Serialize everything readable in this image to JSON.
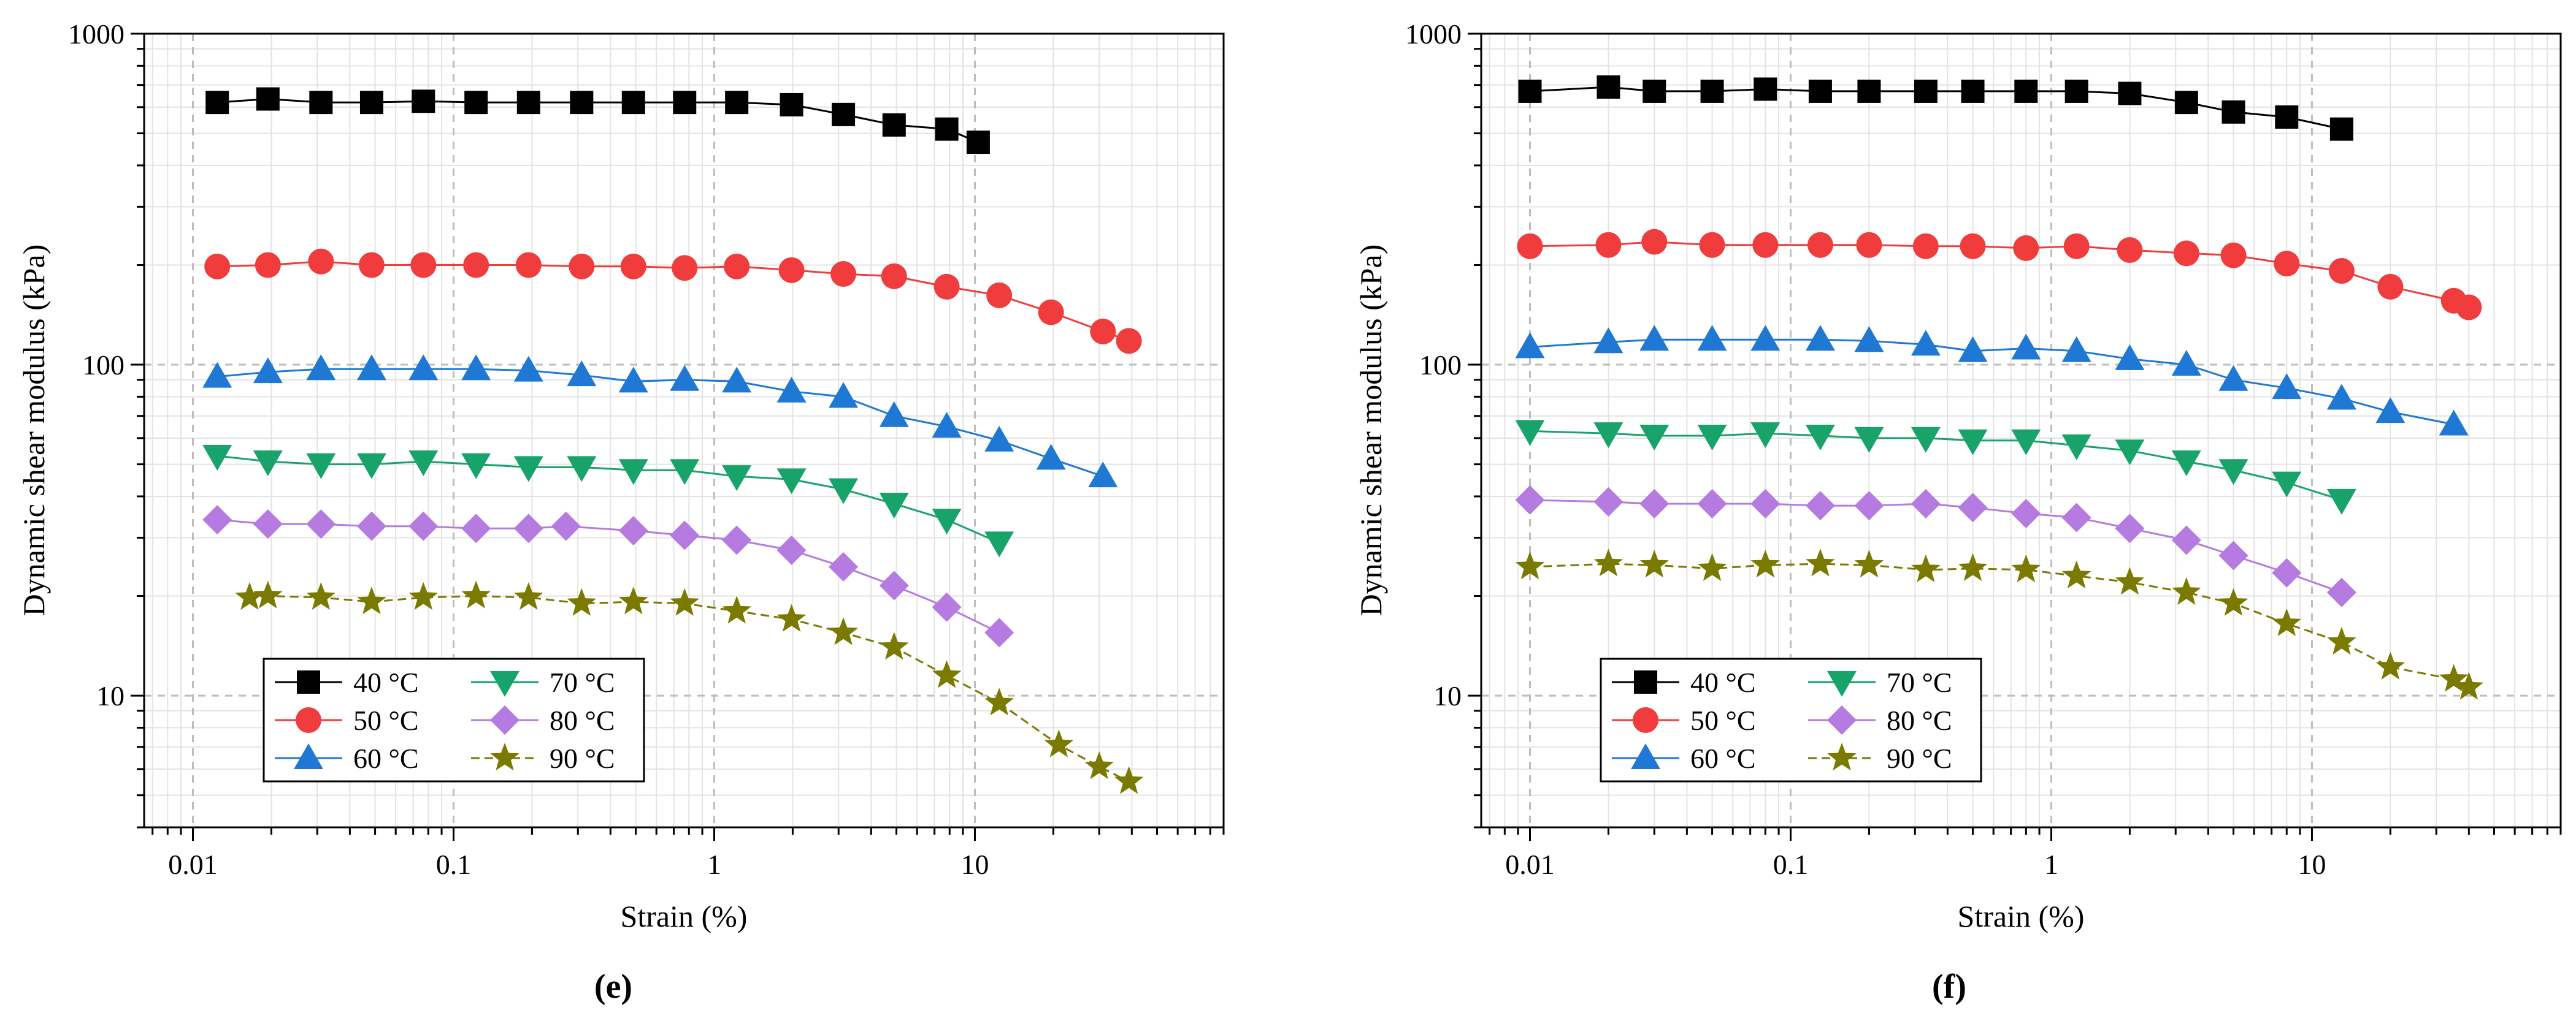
{
  "colors": {
    "40": "#000000",
    "50": "#f03c3c",
    "60": "#1f78d4",
    "70": "#17a36a",
    "80": "#b57be0",
    "90": "#7a7a00"
  },
  "chart_data": [
    {
      "type": "line",
      "panel_label": "(e)",
      "xlabel": "Strain (%)",
      "ylabel": "Dynamic shear modulus (kPa)",
      "xscale": "log",
      "yscale": "log",
      "xlim": [
        0.0065,
        90
      ],
      "ylim": [
        4,
        1000
      ],
      "xticks": [
        0.01,
        0.1,
        1,
        10
      ],
      "xtick_labels": [
        "0.01",
        "0.1",
        "1",
        "10"
      ],
      "yticks": [
        10,
        100,
        1000
      ],
      "ytick_labels": [
        "10",
        "100",
        "1000"
      ],
      "grid": true,
      "legend_position": "bottom-left",
      "series": [
        {
          "name": "40 °C",
          "color_key": "40",
          "marker": "square",
          "dash": false,
          "x": [
            0.0124,
            0.0194,
            0.031,
            0.0485,
            0.0766,
            0.122,
            0.194,
            0.31,
            0.49,
            0.77,
            1.22,
            1.98,
            3.13,
            4.9,
            7.8,
            10.3
          ],
          "y": [
            620,
            635,
            620,
            620,
            625,
            620,
            620,
            620,
            620,
            620,
            620,
            610,
            570,
            530,
            515,
            470
          ]
        },
        {
          "name": "50 °C",
          "color_key": "50",
          "marker": "circle",
          "dash": false,
          "x": [
            0.0124,
            0.0194,
            0.031,
            0.0485,
            0.0766,
            0.122,
            0.194,
            0.31,
            0.49,
            0.77,
            1.22,
            1.98,
            3.13,
            4.9,
            7.8,
            12.4,
            19.6,
            31,
            39
          ],
          "y": [
            198,
            200,
            205,
            200,
            200,
            200,
            200,
            198,
            198,
            196,
            198,
            193,
            188,
            185,
            172,
            162,
            144,
            126,
            118
          ]
        },
        {
          "name": "60 °C",
          "color_key": "60",
          "marker": "triangle-up",
          "dash": false,
          "x": [
            0.0124,
            0.0194,
            0.031,
            0.0485,
            0.0766,
            0.122,
            0.194,
            0.31,
            0.49,
            0.77,
            1.22,
            1.98,
            3.13,
            4.9,
            7.8,
            12.4,
            19.6,
            31
          ],
          "y": [
            92,
            95,
            97,
            97,
            97,
            97,
            96,
            93,
            89,
            90,
            89,
            83,
            80,
            70,
            65,
            59,
            52,
            46
          ]
        },
        {
          "name": "70 °C",
          "color_key": "70",
          "marker": "triangle-down",
          "dash": false,
          "x": [
            0.0124,
            0.0194,
            0.031,
            0.0485,
            0.0766,
            0.122,
            0.194,
            0.31,
            0.49,
            0.77,
            1.22,
            1.98,
            3.13,
            4.9,
            7.8,
            12.4
          ],
          "y": [
            53,
            51,
            50,
            50,
            51,
            50,
            49,
            49,
            48,
            48,
            46,
            45,
            42,
            38,
            34,
            29
          ]
        },
        {
          "name": "80 °C",
          "color_key": "80",
          "marker": "diamond",
          "dash": false,
          "x": [
            0.0124,
            0.0194,
            0.031,
            0.0485,
            0.0766,
            0.122,
            0.194,
            0.27,
            0.49,
            0.77,
            1.22,
            1.98,
            3.13,
            4.9,
            7.8,
            12.4
          ],
          "y": [
            34,
            33,
            33,
            32.5,
            32.5,
            32,
            32,
            32.5,
            31.5,
            30.5,
            29.5,
            27.5,
            24.5,
            21.5,
            18.5,
            15.5
          ]
        },
        {
          "name": "90 °C",
          "color_key": "90",
          "marker": "star",
          "dash": true,
          "x": [
            0.0165,
            0.0194,
            0.031,
            0.0485,
            0.0766,
            0.122,
            0.194,
            0.31,
            0.49,
            0.77,
            1.22,
            1.98,
            3.13,
            4.9,
            7.8,
            12.4,
            21,
            30,
            39
          ],
          "y": [
            19.8,
            20,
            19.8,
            19.2,
            19.8,
            20,
            19.8,
            19,
            19.2,
            19,
            18,
            17,
            15.5,
            14,
            11.5,
            9.5,
            7.1,
            6.1,
            5.5
          ]
        }
      ]
    },
    {
      "type": "line",
      "panel_label": "(f)",
      "xlabel": "Strain (%)",
      "ylabel": "Dynamic shear modulus (kPa)",
      "xscale": "log",
      "yscale": "log",
      "xlim": [
        0.0065,
        90
      ],
      "ylim": [
        4,
        1000
      ],
      "xticks": [
        0.01,
        0.1,
        1,
        10
      ],
      "xtick_labels": [
        "0.01",
        "0.1",
        "1",
        "10"
      ],
      "yticks": [
        10,
        100,
        1000
      ],
      "ytick_labels": [
        "10",
        "100",
        "1000"
      ],
      "grid": true,
      "legend_position": "bottom-left",
      "series": [
        {
          "name": "40 °C",
          "color_key": "40",
          "marker": "square",
          "dash": false,
          "x": [
            0.01,
            0.02,
            0.03,
            0.05,
            0.08,
            0.13,
            0.2,
            0.33,
            0.5,
            0.8,
            1.25,
            2,
            3.3,
            5,
            8,
            13
          ],
          "y": [
            670,
            690,
            670,
            670,
            680,
            670,
            670,
            670,
            670,
            670,
            670,
            660,
            620,
            580,
            560,
            515
          ]
        },
        {
          "name": "50 °C",
          "color_key": "50",
          "marker": "circle",
          "dash": false,
          "x": [
            0.01,
            0.02,
            0.03,
            0.05,
            0.08,
            0.13,
            0.2,
            0.33,
            0.5,
            0.8,
            1.25,
            2,
            3.3,
            5,
            8,
            13,
            20,
            35,
            40
          ],
          "y": [
            228,
            230,
            235,
            230,
            230,
            230,
            230,
            228,
            228,
            225,
            228,
            222,
            217,
            214,
            202,
            192,
            172,
            156,
            149
          ]
        },
        {
          "name": "60 °C",
          "color_key": "60",
          "marker": "triangle-up",
          "dash": false,
          "x": [
            0.01,
            0.02,
            0.03,
            0.05,
            0.08,
            0.13,
            0.2,
            0.33,
            0.5,
            0.8,
            1.25,
            2,
            3.3,
            5,
            8,
            13,
            20,
            35
          ],
          "y": [
            113,
            117,
            119,
            119,
            119,
            119,
            118,
            115,
            110,
            112,
            110,
            104,
            100,
            90,
            85,
            79,
            72,
            66
          ]
        },
        {
          "name": "70 °C",
          "color_key": "70",
          "marker": "triangle-down",
          "dash": false,
          "x": [
            0.01,
            0.02,
            0.03,
            0.05,
            0.08,
            0.13,
            0.2,
            0.33,
            0.5,
            0.8,
            1.25,
            2,
            3.3,
            5,
            8,
            13
          ],
          "y": [
            63,
            62,
            61,
            61,
            62,
            61,
            60,
            60,
            59,
            59,
            57,
            55,
            51,
            48,
            44,
            39
          ]
        },
        {
          "name": "80 °C",
          "color_key": "80",
          "marker": "diamond",
          "dash": false,
          "x": [
            0.01,
            0.02,
            0.03,
            0.05,
            0.08,
            0.13,
            0.2,
            0.33,
            0.5,
            0.8,
            1.25,
            2,
            3.3,
            5,
            8,
            13
          ],
          "y": [
            39,
            38.5,
            38,
            38,
            38,
            37.5,
            37.5,
            38,
            37,
            35.5,
            34.5,
            32,
            29.5,
            26.5,
            23.5,
            20.5
          ]
        },
        {
          "name": "90 °C",
          "color_key": "90",
          "marker": "star",
          "dash": true,
          "x": [
            0.01,
            0.02,
            0.03,
            0.05,
            0.08,
            0.13,
            0.2,
            0.33,
            0.5,
            0.8,
            1.25,
            2,
            3.3,
            5,
            8,
            13,
            20,
            35,
            40
          ],
          "y": [
            24.5,
            25,
            24.8,
            24.2,
            24.8,
            25,
            24.8,
            24,
            24.2,
            24,
            23,
            22,
            20.5,
            19,
            16.5,
            14.5,
            12.2,
            11.2,
            10.6
          ]
        }
      ]
    }
  ]
}
